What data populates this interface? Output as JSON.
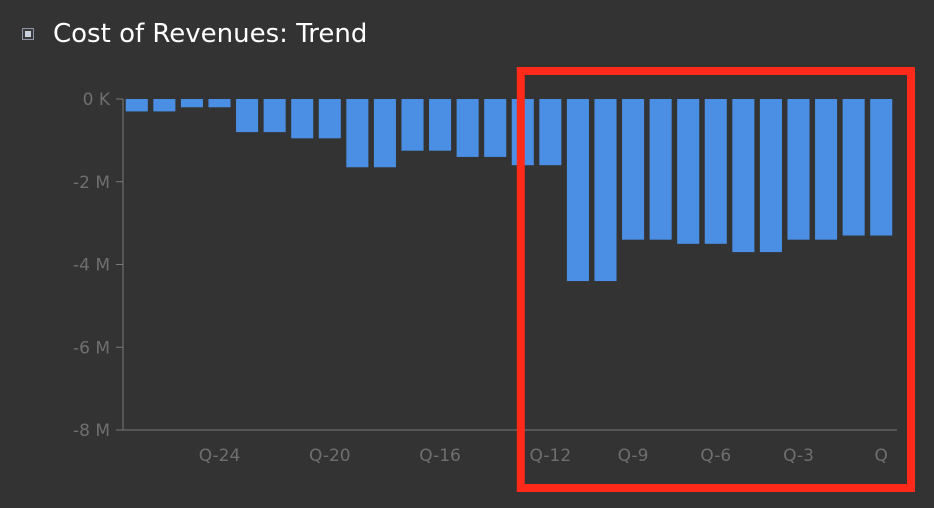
{
  "header": {
    "title": "Cost of Revenues: Trend",
    "toggle_icon": "collapse-toggle-icon"
  },
  "colors": {
    "background": "#333333",
    "bar": "#4a8fe4",
    "axis": "#7a7a7a",
    "tick_text": "#6f6f6f",
    "highlight": "#ff2a1a"
  },
  "chart_data": {
    "type": "bar",
    "title": "",
    "xlabel": "",
    "ylabel": "",
    "ylim": [
      -8000000,
      0
    ],
    "y_ticks": [
      0,
      -2000000,
      -4000000,
      -6000000,
      -8000000
    ],
    "y_tick_labels": [
      "0 K",
      "-2 M",
      "-4 M",
      "-6 M",
      "-8 M"
    ],
    "x_tick_labels": [
      "Q-24",
      "Q-20",
      "Q-16",
      "Q-12",
      "Q-9",
      "Q-6",
      "Q-3",
      "Q"
    ],
    "x_tick_categories": [
      "Q-24",
      "Q-20",
      "Q-16",
      "Q-12",
      "Q-9",
      "Q-6",
      "Q-3",
      "Q"
    ],
    "categories": [
      "Q-27",
      "Q-26",
      "Q-25",
      "Q-24",
      "Q-23",
      "Q-22",
      "Q-21",
      "Q-20",
      "Q-19",
      "Q-18",
      "Q-17",
      "Q-16",
      "Q-15",
      "Q-14",
      "Q-13",
      "Q-12",
      "Q-11",
      "Q-10",
      "Q-9",
      "Q-8",
      "Q-7",
      "Q-6",
      "Q-5",
      "Q-4",
      "Q-3",
      "Q-2",
      "Q-1",
      "Q"
    ],
    "values": [
      -300000,
      -300000,
      -200000,
      -200000,
      -800000,
      -800000,
      -950000,
      -950000,
      -1650000,
      -1650000,
      -1250000,
      -1250000,
      -1400000,
      -1400000,
      -1600000,
      -1600000,
      -4400000,
      -4400000,
      -3400000,
      -3400000,
      -3500000,
      -3500000,
      -3700000,
      -3700000,
      -3400000,
      -3400000,
      -3300000,
      -3300000
    ],
    "grid": false,
    "highlight_region": {
      "from_category": "Q-13",
      "to_category": "Q"
    }
  }
}
